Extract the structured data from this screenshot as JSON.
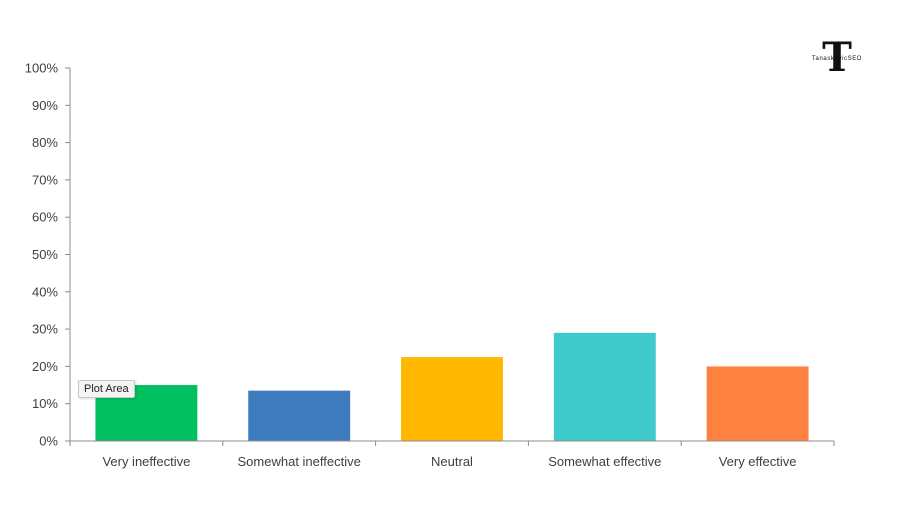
{
  "chart_data": {
    "type": "bar",
    "categories": [
      "Very ineffective",
      "Somewhat ineffective",
      "Neutral",
      "Somewhat effective",
      "Very effective"
    ],
    "values": [
      15,
      13.5,
      22.5,
      29,
      20
    ],
    "colors": [
      "#00c060",
      "#3e7bbf",
      "#ffb700",
      "#3ec9cb",
      "#ff8140"
    ],
    "ylim": [
      0,
      100
    ],
    "yticks": [
      "0%",
      "10%",
      "20%",
      "30%",
      "40%",
      "50%",
      "60%",
      "70%",
      "80%",
      "90%",
      "100%"
    ],
    "title": "",
    "xlabel": "",
    "ylabel": "",
    "grid": false,
    "unit": "%"
  },
  "tooltip": {
    "text": "Plot Area"
  },
  "logo": {
    "letter": "T",
    "text": "TanaskovicSEO"
  }
}
